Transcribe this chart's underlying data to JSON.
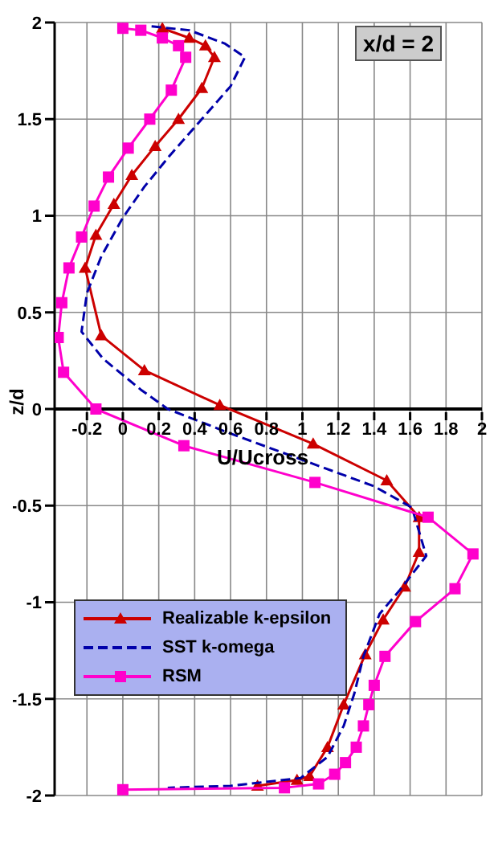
{
  "chart_data": {
    "type": "line",
    "xlabel": "U/Ucross",
    "ylabel": "z/d",
    "annotations": [
      "x/d = 2"
    ],
    "xlim": [
      -0.38,
      2
    ],
    "ylim": [
      -2,
      2
    ],
    "xticks": [
      -0.2,
      0,
      0.2,
      0.4,
      0.6,
      0.8,
      1,
      1.2,
      1.4,
      1.6,
      1.8,
      2
    ],
    "yticks": [
      -2,
      -1.5,
      -1,
      -0.5,
      0,
      0.5,
      1,
      1.5,
      2
    ],
    "grid": true,
    "legend": "bottom left",
    "series": [
      {
        "name": "Realizable k-epsilon",
        "color": "#cc0000",
        "marker": "triangle",
        "line_style": "solid",
        "x": [
          0.22,
          0.37,
          0.46,
          0.51,
          0.44,
          0.31,
          0.18,
          0.05,
          -0.05,
          -0.15,
          -0.21,
          -0.12,
          0.12,
          0.54,
          1.06,
          1.47,
          1.65,
          1.65,
          1.57,
          1.45,
          1.35,
          1.23,
          1.14,
          1.04,
          0.97,
          0.75
        ],
        "values": [
          1.97,
          1.92,
          1.88,
          1.82,
          1.66,
          1.5,
          1.36,
          1.21,
          1.06,
          0.9,
          0.73,
          0.38,
          0.2,
          0.02,
          -0.18,
          -0.37,
          -0.56,
          -0.74,
          -0.92,
          -1.09,
          -1.27,
          -1.53,
          -1.75,
          -1.9,
          -1.92,
          -1.95
        ]
      },
      {
        "name": "SST k-omega",
        "color": "#0000aa",
        "marker": "none",
        "line_style": "dashed",
        "x": [
          0.16,
          0.37,
          0.57,
          0.68,
          0.6,
          0.43,
          0.26,
          0.12,
          0,
          -0.12,
          -0.2,
          -0.23,
          -0.11,
          0.1,
          0.25,
          0.58,
          0.99,
          1.4,
          1.61,
          1.69,
          1.54,
          1.43,
          1.34,
          1.29,
          1.23,
          1.14,
          0.99,
          0.6,
          0.25
        ],
        "values": [
          1.98,
          1.96,
          1.89,
          1.82,
          1.67,
          1.49,
          1.31,
          1.15,
          0.99,
          0.79,
          0.6,
          0.4,
          0.26,
          0.1,
          0,
          -0.12,
          -0.26,
          -0.4,
          -0.51,
          -0.76,
          -0.94,
          -1.06,
          -1.28,
          -1.47,
          -1.64,
          -1.8,
          -1.91,
          -1.95,
          -1.96
        ]
      },
      {
        "name": "RSM",
        "color": "#ff00cc",
        "marker": "square",
        "line_style": "solid",
        "x": [
          0,
          0.1,
          0.22,
          0.31,
          0.35,
          0.27,
          0.15,
          0.03,
          -0.08,
          -0.16,
          -0.23,
          -0.3,
          -0.34,
          -0.36,
          -0.33,
          -0.15,
          0.34,
          1.07,
          1.7,
          1.95,
          1.85,
          1.63,
          1.46,
          1.4,
          1.37,
          1.34,
          1.3,
          1.24,
          1.18,
          1.09,
          0.9,
          0
        ],
        "values": [
          1.97,
          1.96,
          1.92,
          1.88,
          1.82,
          1.65,
          1.5,
          1.35,
          1.2,
          1.05,
          0.89,
          0.73,
          0.55,
          0.37,
          0.19,
          0,
          -0.19,
          -0.38,
          -0.56,
          -0.75,
          -0.93,
          -1.1,
          -1.28,
          -1.43,
          -1.53,
          -1.64,
          -1.75,
          -1.83,
          -1.89,
          -1.94,
          -1.96,
          -1.97
        ]
      }
    ]
  }
}
